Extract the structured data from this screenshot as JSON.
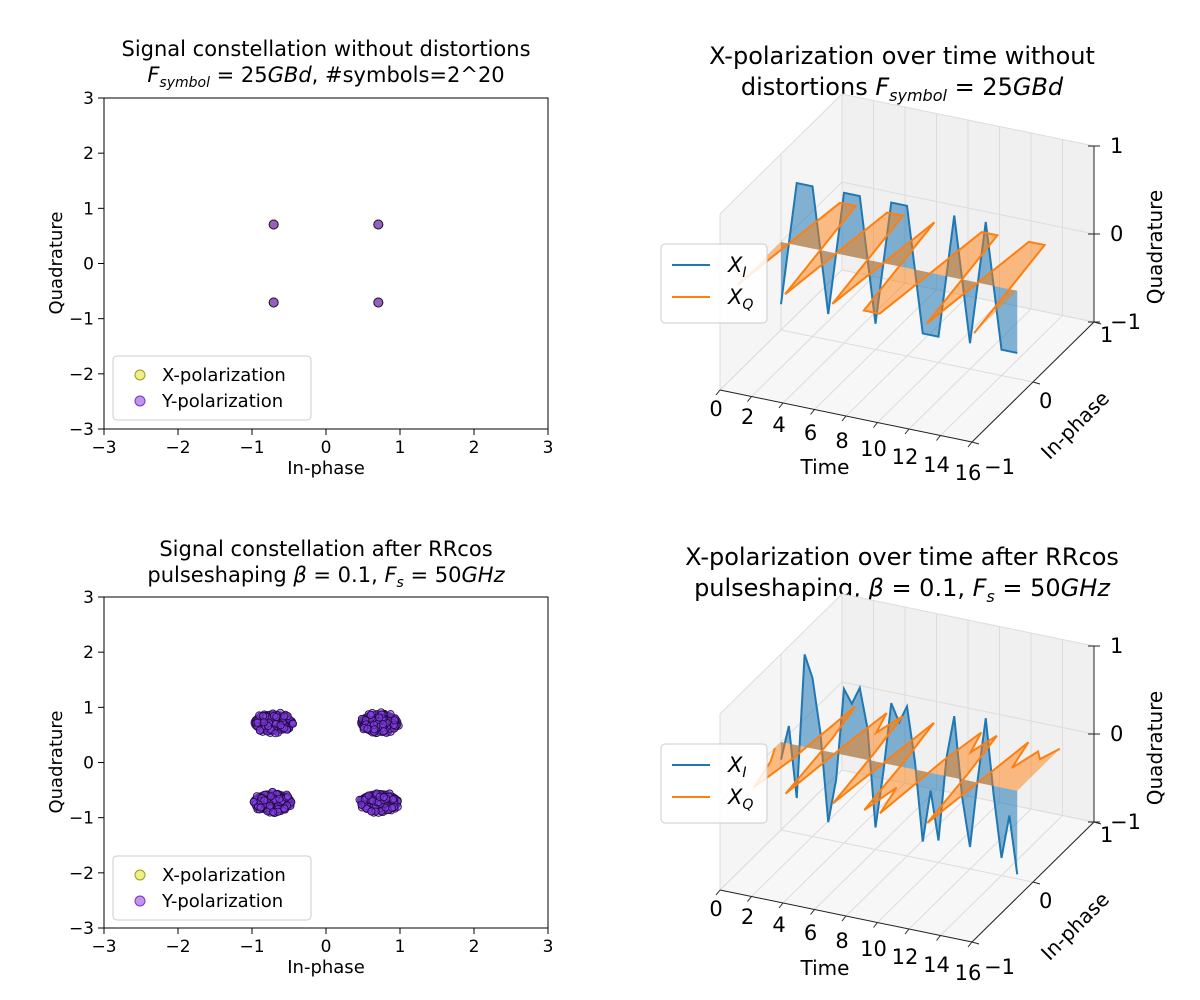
{
  "figure": {
    "panels": [
      {
        "title_line1": "Signal constellation without distortions",
        "title_line2": "F_symbol = 25GBd, #symbols=2^20"
      },
      {
        "title_line1": "X-polarization over time without",
        "title_line2": "distortions F_symbol = 25GBd"
      },
      {
        "title_line1": "Signal constellation after RRcos",
        "title_line2": "pulseshaping β = 0.1, F_s = 50GHz"
      },
      {
        "title_line1": "X-polarization over time after RRcos",
        "title_line2": "pulseshaping, β = 0.1, F_s = 50GHz"
      }
    ]
  },
  "chart_data": [
    {
      "type": "scatter",
      "title": "Signal constellation without distortions F_symbol = 25GBd, #symbols=2^20",
      "xlabel": "In-phase",
      "ylabel": "Quadrature",
      "xlim": [
        -3,
        3
      ],
      "ylim": [
        -3,
        3
      ],
      "xticks": [
        "−3",
        "−2",
        "−1",
        "0",
        "1",
        "2",
        "3"
      ],
      "yticks": [
        "3",
        "2",
        "1",
        "0",
        "−1",
        "−2",
        "−3"
      ],
      "legend_position": "lower-left",
      "series": [
        {
          "name": "X-polarization",
          "color": "#e5e534",
          "points": [
            [
              -0.707,
              0.707
            ],
            [
              0.707,
              0.707
            ],
            [
              -0.707,
              -0.707
            ],
            [
              0.707,
              -0.707
            ]
          ]
        },
        {
          "name": "Y-polarization",
          "color": "#7b2fd4",
          "points": [
            [
              -0.707,
              0.707
            ],
            [
              0.707,
              0.707
            ],
            [
              -0.707,
              -0.707
            ],
            [
              0.707,
              -0.707
            ]
          ]
        }
      ],
      "clusters": false
    },
    {
      "type": "line",
      "projection": "3d",
      "title": "X-polarization over time without distortions F_symbol = 25GBd",
      "xlabel": "Time",
      "ylabel": "In-phase",
      "zlabel": "Quadrature",
      "xlim": [
        0,
        16
      ],
      "ylim": [
        -1,
        1
      ],
      "zlim": [
        -1,
        1
      ],
      "xticks": [
        "0",
        "2",
        "4",
        "6",
        "8",
        "10",
        "12",
        "14",
        "16"
      ],
      "yticks": [
        "−1",
        "0",
        "1"
      ],
      "zticks": [
        "−1",
        "0",
        "1"
      ],
      "legend_position": "center-left",
      "series": [
        {
          "name": "X_I",
          "color": "#1f77b4",
          "t": [
            0,
            1,
            2,
            3,
            4,
            5,
            6,
            7,
            8,
            9,
            10,
            11,
            12,
            13,
            14,
            15
          ],
          "values": [
            -0.707,
            0.707,
            0.707,
            -0.707,
            0.707,
            0.707,
            -0.707,
            0.707,
            0.707,
            -0.707,
            -0.707,
            0.707,
            -0.707,
            0.707,
            -0.707,
            -0.707
          ]
        },
        {
          "name": "X_Q",
          "color": "#ff7f0e",
          "t": [
            0,
            1,
            2,
            3,
            4,
            5,
            6,
            7,
            8,
            9,
            10,
            11,
            12,
            13,
            14,
            15
          ],
          "values": [
            -0.707,
            0.707,
            0.707,
            -0.707,
            0.707,
            0.707,
            -0.707,
            0.707,
            -0.707,
            -0.707,
            0.707,
            0.707,
            -0.707,
            0.707,
            0.707,
            -0.707
          ]
        }
      ]
    },
    {
      "type": "scatter",
      "title": "Signal constellation after RRcos pulseshaping β = 0.1, F_s = 50GHz",
      "xlabel": "In-phase",
      "ylabel": "Quadrature",
      "xlim": [
        -3,
        3
      ],
      "ylim": [
        -3,
        3
      ],
      "xticks": [
        "−3",
        "−2",
        "−1",
        "0",
        "1",
        "2",
        "3"
      ],
      "yticks": [
        "3",
        "2",
        "1",
        "0",
        "−1",
        "−2",
        "−3"
      ],
      "legend_position": "lower-left",
      "series": [
        {
          "name": "X-polarization",
          "color": "#e5e534",
          "points": [
            [
              -0.72,
              0.72
            ],
            [
              0.72,
              0.72
            ],
            [
              -0.72,
              -0.72
            ],
            [
              0.72,
              -0.72
            ]
          ]
        },
        {
          "name": "Y-polarization",
          "color": "#7b2fd4",
          "points": [
            [
              -0.72,
              0.72
            ],
            [
              0.72,
              0.72
            ],
            [
              -0.72,
              -0.72
            ],
            [
              0.72,
              -0.72
            ]
          ]
        }
      ],
      "clusters": true,
      "cluster_halfwidth": [
        0.3,
        0.22
      ]
    },
    {
      "type": "line",
      "projection": "3d",
      "title": "X-polarization over time after RRcos pulseshaping, β = 0.1, F_s = 50GHz",
      "xlabel": "Time",
      "ylabel": "In-phase",
      "zlabel": "Quadrature",
      "xlim": [
        0,
        16
      ],
      "ylim": [
        -1,
        1
      ],
      "zlim": [
        -1,
        1
      ],
      "xticks": [
        "0",
        "2",
        "4",
        "6",
        "8",
        "10",
        "12",
        "14",
        "16"
      ],
      "yticks": [
        "−1",
        "0",
        "1"
      ],
      "zticks": [
        "−1",
        "0",
        "1"
      ],
      "legend_position": "center-left",
      "series": [
        {
          "name": "X_I",
          "color": "#1f77b4",
          "t": [
            0,
            0.5,
            1,
            1.5,
            2,
            2.5,
            3,
            3.5,
            4,
            4.5,
            5,
            5.5,
            6,
            6.5,
            7,
            7.5,
            8,
            8.5,
            9,
            9.5,
            10,
            10.5,
            11,
            11.5,
            12,
            12.5,
            13,
            13.5,
            14,
            14.5,
            15
          ],
          "values": [
            -0.2,
            0.2,
            -0.6,
            1.05,
            0.8,
            0.2,
            -0.8,
            -0.3,
            0.75,
            0.6,
            0.8,
            0.35,
            -0.75,
            -0.1,
            0.7,
            0.5,
            0.7,
            0.1,
            -0.8,
            -0.2,
            -0.75,
            0.2,
            0.7,
            -0.2,
            -0.75,
            0.05,
            0.75,
            -0.1,
            -0.8,
            -0.3,
            -0.95
          ]
        },
        {
          "name": "X_Q",
          "color": "#ff7f0e",
          "t": [
            0,
            0.5,
            1,
            1.5,
            2,
            2.5,
            3,
            3.5,
            4,
            4.5,
            5,
            5.5,
            6,
            6.5,
            7,
            7.5,
            8,
            8.5,
            9,
            9.5,
            10,
            10.5,
            11,
            11.5,
            12,
            12.5,
            13,
            13.5,
            14,
            14.5,
            15
          ],
          "values": [
            -0.1,
            -0.3,
            -0.7,
            -0.2,
            0.7,
            0.2,
            -0.7,
            0.1,
            0.7,
            0.4,
            0.7,
            0.1,
            -0.7,
            0.0,
            0.7,
            0.1,
            -0.7,
            -0.3,
            -0.7,
            0.2,
            0.7,
            0.4,
            0.7,
            0.1,
            -0.7,
            0.0,
            0.7,
            0.3,
            0.6,
            0.5,
            0.7
          ]
        }
      ]
    }
  ]
}
